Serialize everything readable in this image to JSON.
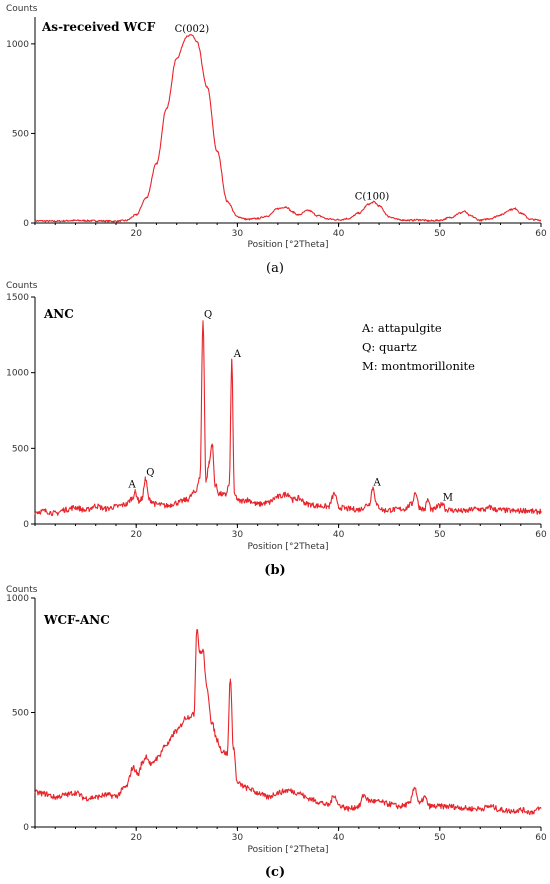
{
  "panel_labels": [
    "(a)",
    "(b)",
    "(c)"
  ],
  "chart_data": [
    {
      "type": "line",
      "title": "As-received WCF",
      "ylabel": "Counts",
      "xlabel": "Position [°2Theta]",
      "xlim": [
        10,
        60
      ],
      "ylim": [
        0,
        1150
      ],
      "xticks": [
        20,
        30,
        40,
        50,
        60
      ],
      "yticks": [
        0,
        500,
        1000
      ],
      "grid": false,
      "series": [
        {
          "color": "#e8242a",
          "x": [
            10,
            12,
            14,
            16,
            18,
            19,
            20,
            21,
            22,
            23,
            24,
            25,
            25.5,
            26,
            27,
            28,
            29,
            30,
            31,
            32,
            33,
            34,
            34.8,
            35.5,
            36,
            37,
            38,
            39,
            40,
            41,
            42,
            43,
            43.5,
            44,
            45,
            46,
            47,
            48,
            49,
            50,
            51,
            52,
            52.4,
            53,
            54,
            55,
            56,
            57,
            57.5,
            58,
            59,
            60
          ],
          "y": [
            12,
            10,
            14,
            12,
            10,
            14,
            45,
            140,
            330,
            640,
            920,
            1040,
            1050,
            1010,
            760,
            400,
            120,
            35,
            20,
            25,
            40,
            80,
            90,
            60,
            45,
            70,
            40,
            22,
            18,
            25,
            55,
            105,
            118,
            95,
            35,
            18,
            15,
            18,
            12,
            15,
            30,
            55,
            65,
            40,
            15,
            25,
            45,
            75,
            80,
            55,
            20,
            15
          ]
        }
      ],
      "annotations": [
        {
          "text": "C(002)",
          "x": 25.5,
          "y": 1065
        },
        {
          "text": "C(100)",
          "x": 43.3,
          "y": 130
        }
      ]
    },
    {
      "type": "line",
      "title": "ANC",
      "ylabel": "Counts",
      "xlabel": "Position [°2Theta]",
      "xlim": [
        10,
        60
      ],
      "ylim": [
        0,
        1500
      ],
      "xticks": [
        20,
        30,
        40,
        50,
        60
      ],
      "yticks": [
        0,
        500,
        1000,
        1500
      ],
      "grid": false,
      "legend": [
        "A: attapulgite",
        "Q: quartz",
        "M: montmorillonite"
      ],
      "series": [
        {
          "color": "#e8242a",
          "x": [
            10,
            11,
            12,
            13,
            14,
            15,
            16,
            17,
            18,
            19,
            19.6,
            19.9,
            20.3,
            20.6,
            20.9,
            21.3,
            22,
            23,
            24,
            25,
            25.8,
            26.3,
            26.6,
            26.9,
            27.2,
            27.5,
            27.8,
            28.2,
            28.8,
            29.2,
            29.45,
            29.7,
            30.2,
            31,
            32,
            33,
            34,
            35,
            35.5,
            36,
            37,
            38,
            39,
            39.6,
            40,
            41,
            42,
            43,
            43.4,
            43.8,
            44.5,
            45.5,
            46.5,
            47.2,
            47.6,
            48,
            48.5,
            48.8,
            49.2,
            50,
            50.3,
            50.6,
            51.5,
            52.5,
            53.5,
            54.5,
            55,
            55.5,
            56.5,
            57.5,
            58.5,
            59.5,
            60
          ],
          "y": [
            80,
            85,
            70,
            95,
            110,
            90,
            120,
            100,
            115,
            130,
            170,
            210,
            150,
            170,
            300,
            160,
            130,
            120,
            140,
            160,
            210,
            300,
            1340,
            280,
            400,
            530,
            260,
            200,
            190,
            260,
            1080,
            190,
            150,
            160,
            130,
            140,
            180,
            200,
            160,
            170,
            130,
            120,
            115,
            200,
            110,
            100,
            95,
            130,
            240,
            120,
            90,
            95,
            100,
            130,
            210,
            110,
            95,
            160,
            90,
            120,
            140,
            95,
            90,
            85,
            100,
            95,
            110,
            95,
            90,
            85,
            90,
            80,
            85
          ]
        }
      ],
      "annotations": [
        {
          "text": "A",
          "x": 19.6,
          "y": 240
        },
        {
          "text": "Q",
          "x": 21.4,
          "y": 320
        },
        {
          "text": "Q",
          "x": 27.1,
          "y": 1365
        },
        {
          "text": "A",
          "x": 30.0,
          "y": 1105
        },
        {
          "text": "A",
          "x": 43.8,
          "y": 255
        },
        {
          "text": "M",
          "x": 50.8,
          "y": 155
        }
      ]
    },
    {
      "type": "line",
      "title": "WCF-ANC",
      "ylabel": "Counts",
      "xlabel": "Position [°2Theta]",
      "xlim": [
        10,
        60
      ],
      "ylim": [
        0,
        1000
      ],
      "xticks": [
        20,
        30,
        40,
        50,
        60
      ],
      "yticks": [
        0,
        500,
        1000
      ],
      "grid": false,
      "series": [
        {
          "color": "#e8242a",
          "x": [
            10,
            11,
            12,
            13,
            14,
            15,
            16,
            17,
            18,
            19,
            19.7,
            20.2,
            20.6,
            21,
            21.5,
            22,
            23,
            24,
            25,
            25.7,
            26.0,
            26.3,
            26.6,
            27,
            27.5,
            28,
            28.5,
            29,
            29.3,
            29.6,
            30,
            31,
            32,
            33,
            34,
            35,
            36,
            37,
            38,
            39,
            39.6,
            40,
            41,
            42,
            42.5,
            43,
            44,
            45,
            46,
            47,
            47.5,
            48,
            48.5,
            49,
            50,
            51,
            52,
            53,
            54,
            55,
            56,
            57,
            58,
            59,
            60
          ],
          "y": [
            150,
            145,
            130,
            140,
            150,
            125,
            130,
            140,
            135,
            175,
            260,
            230,
            280,
            310,
            270,
            300,
            360,
            420,
            480,
            490,
            870,
            760,
            770,
            600,
            450,
            380,
            330,
            320,
            650,
            350,
            190,
            170,
            150,
            130,
            150,
            160,
            150,
            125,
            110,
            95,
            140,
            95,
            80,
            90,
            140,
            115,
            110,
            100,
            90,
            100,
            175,
            100,
            130,
            90,
            90,
            90,
            85,
            80,
            80,
            90,
            75,
            70,
            75,
            65,
            80
          ]
        }
      ],
      "annotations": []
    }
  ]
}
